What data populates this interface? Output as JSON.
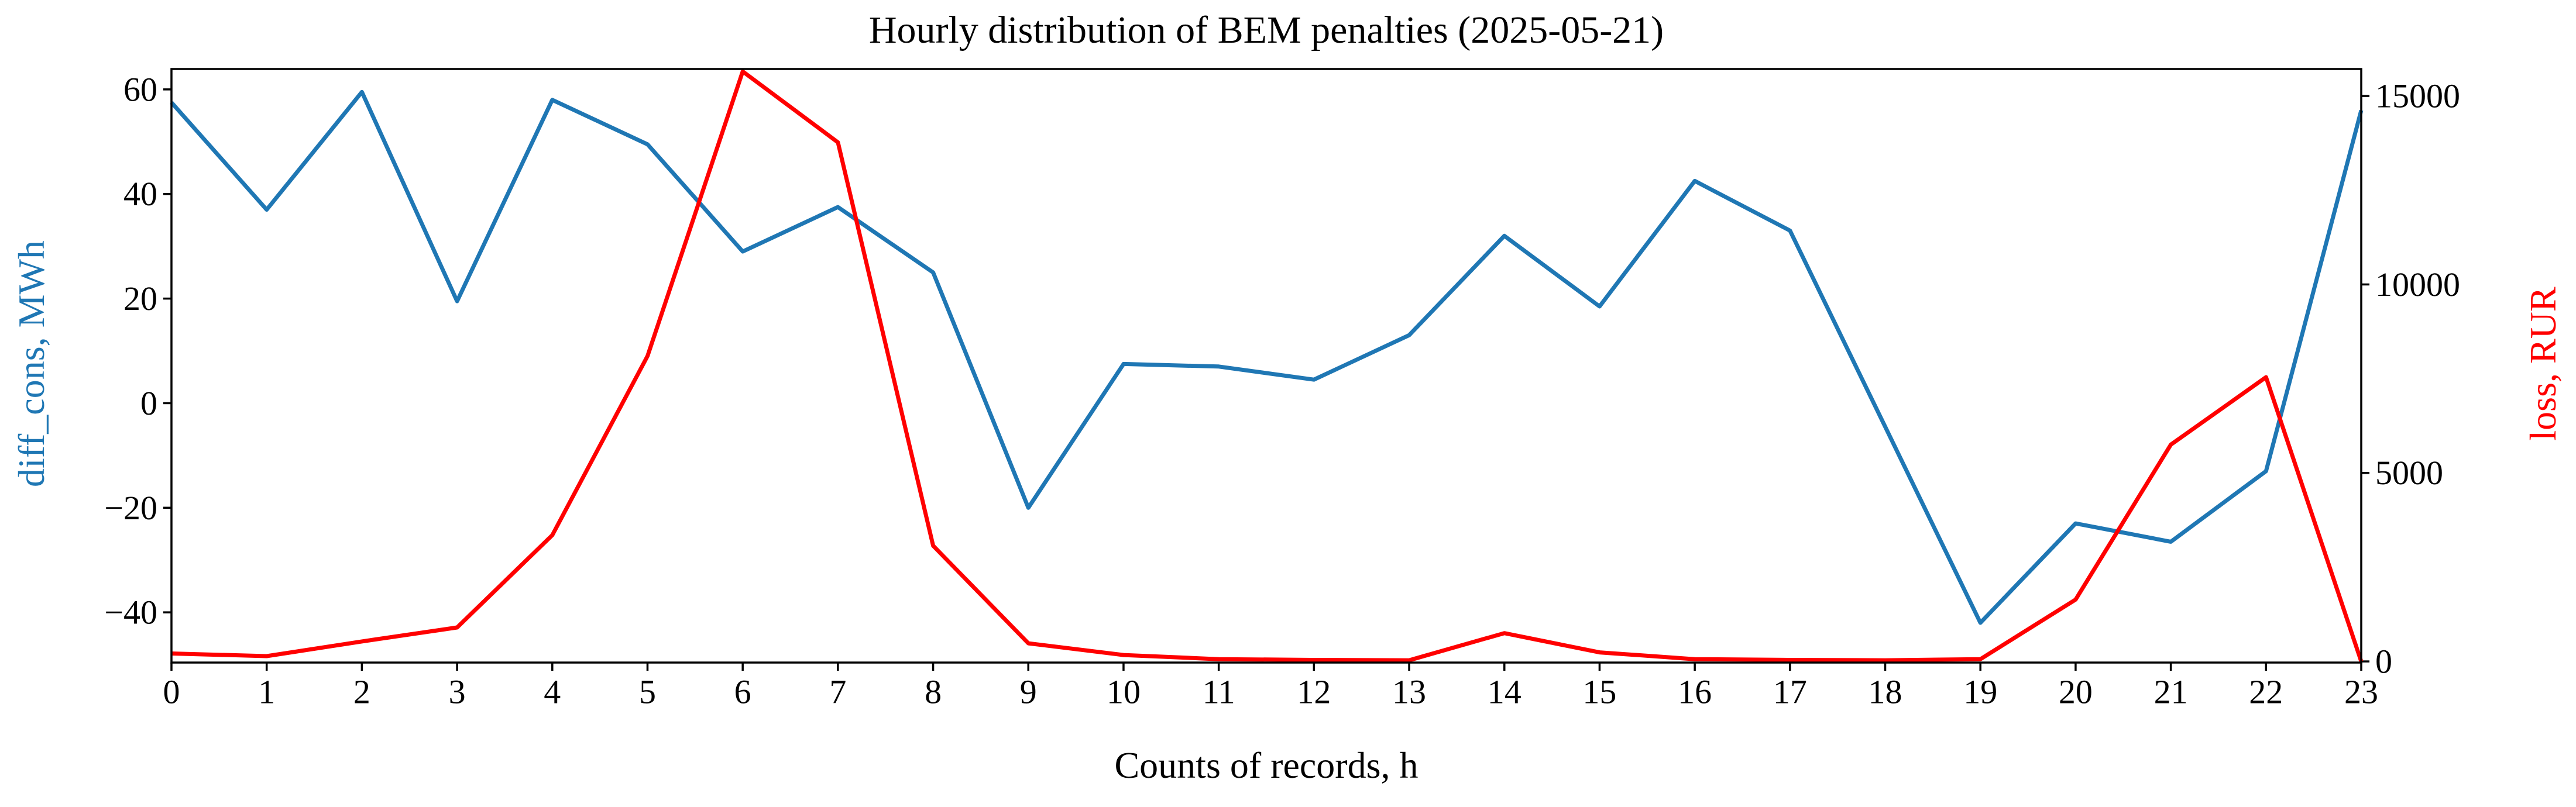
{
  "title": "Hourly distribution of BEM penalties (2025-05-21)",
  "chart_data": {
    "type": "line",
    "x": [
      0,
      1,
      2,
      3,
      4,
      5,
      6,
      7,
      8,
      9,
      10,
      11,
      12,
      13,
      14,
      15,
      16,
      17,
      18,
      19,
      20,
      21,
      22,
      23
    ],
    "x_ticks": [
      0,
      1,
      2,
      3,
      4,
      5,
      6,
      7,
      8,
      9,
      10,
      11,
      12,
      13,
      14,
      15,
      16,
      17,
      18,
      19,
      20,
      21,
      22,
      23
    ],
    "xlabel": "Counts of records, h",
    "series": [
      {
        "name": "diff_cons",
        "axis": "left",
        "color": "#1f77b4",
        "values": [
          57.5,
          37,
          59.5,
          19.5,
          58,
          49.5,
          29,
          37.5,
          25,
          -20,
          7.5,
          7,
          4.5,
          13,
          32,
          18.5,
          42.5,
          33,
          -4.5,
          -42,
          -23,
          -26.5,
          -13,
          56
        ]
      },
      {
        "name": "loss",
        "axis": "right",
        "color": "#ff0000",
        "values": [
          210,
          140,
          530,
          900,
          3350,
          8100,
          15650,
          13770,
          3070,
          480,
          170,
          60,
          40,
          30,
          750,
          240,
          60,
          40,
          30,
          60,
          1640,
          5750,
          7540,
          0
        ]
      }
    ],
    "left_axis": {
      "label": "diff_cons, MWh",
      "color": "#1f77b4",
      "ticks": [
        -40,
        -20,
        0,
        20,
        40,
        60
      ],
      "min": -49.6,
      "max": 63.9
    },
    "right_axis": {
      "label": "loss, RUR",
      "color": "#ff0000",
      "ticks": [
        0,
        5000,
        10000,
        15000
      ],
      "min": -30,
      "max": 15715
    },
    "grid": false,
    "legend": "none"
  }
}
